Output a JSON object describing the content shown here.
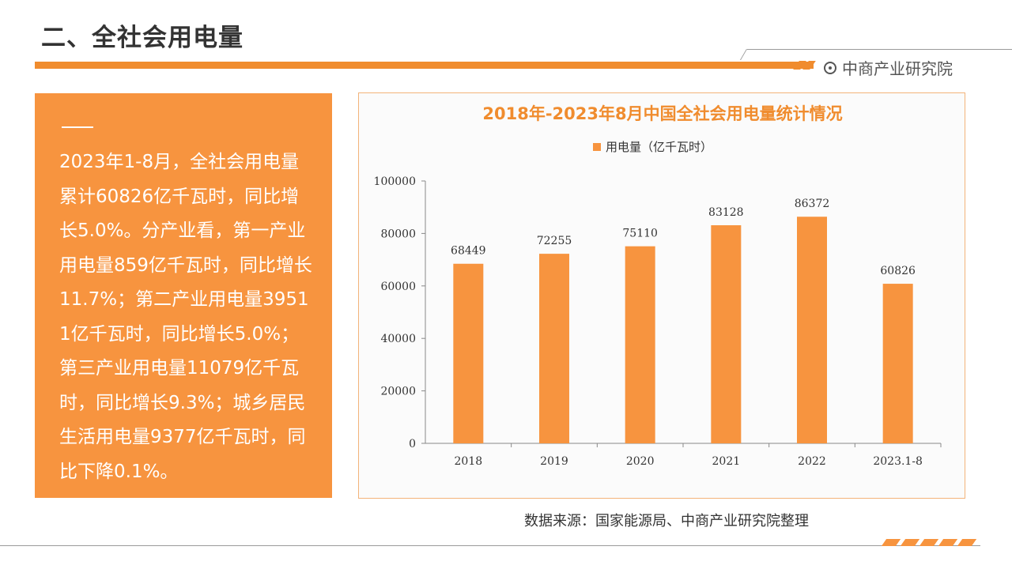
{
  "header": {
    "title": "二、全社会用电量",
    "brand": "中商产业研究院"
  },
  "summary": {
    "text": "2023年1-8月，全社会用电量累计60826亿千瓦时，同比增长5.0%。分产业看，第一产业用电量859亿千瓦时，同比增长11.7%；第二产业用电量39511亿千瓦时，同比增长5.0%；第三产业用电量11079亿千瓦时，同比增长9.3%；城乡居民生活用电量9377亿千瓦时，同比下降0.1%。"
  },
  "source": "数据来源：国家能源局、中商产业研究院整理",
  "colors": {
    "accent": "#f08c2e",
    "bar": "#f7943f",
    "panel": "#f7943f"
  },
  "chart_data": {
    "type": "bar",
    "title": "2018年-2023年8月中国全社会用电量统计情况",
    "categories": [
      "2018",
      "2019",
      "2020",
      "2021",
      "2022",
      "2023.1-8"
    ],
    "series": [
      {
        "name": "用电量（亿千瓦时）",
        "values": [
          68449,
          72255,
          75110,
          83128,
          86372,
          60826
        ]
      }
    ],
    "ylim": [
      0,
      100000
    ],
    "yticks": [
      "0",
      "20000",
      "40000",
      "60000",
      "80000",
      "100000"
    ],
    "grid": false,
    "legend": "top-center"
  }
}
